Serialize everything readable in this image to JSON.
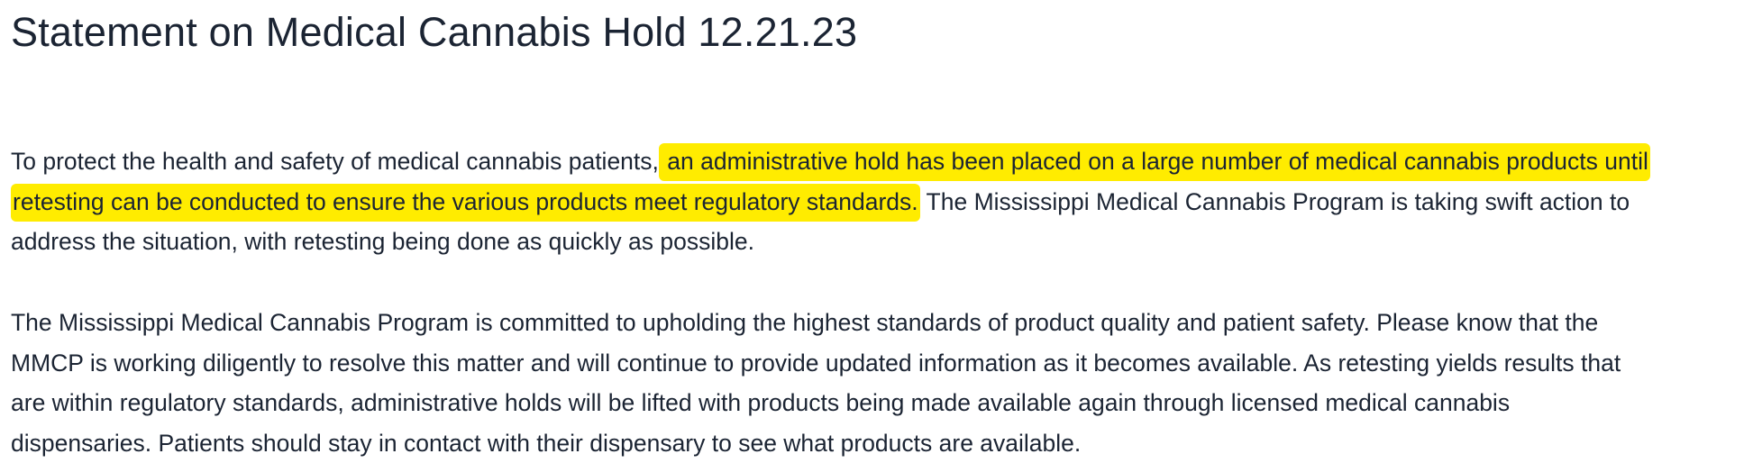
{
  "title": "Statement on Medical Cannabis Hold 12.21.23",
  "paragraph1": {
    "line1_plain": "To protect the health and safety of medical cannabis patients,",
    "line1_highlight": " an administrative hold has been placed on a large number of medical cannabis products until",
    "line2_highlight": "retesting can be conducted to ensure the various products meet regulatory standards.",
    "line2_plain": " The Mississippi Medical Cannabis Program is taking swift action to",
    "line3_plain": "address the situation, with retesting being done as quickly as possible."
  },
  "paragraph2": {
    "line1": "The Mississippi Medical Cannabis Program is committed to upholding the highest standards of product quality and patient safety. Please know that the",
    "line2": "MMCP is working diligently to resolve this matter and will continue to provide updated information as it becomes available.  As retesting yields results that",
    "line3": "are within regulatory standards, administrative holds will be lifted with products being made available again through licensed medical cannabis",
    "line4": "dispensaries.  Patients should stay in contact with their dispensary to see what products are available."
  },
  "colors": {
    "text": "#1b2433",
    "highlight": "#ffec00",
    "background": "#ffffff"
  }
}
